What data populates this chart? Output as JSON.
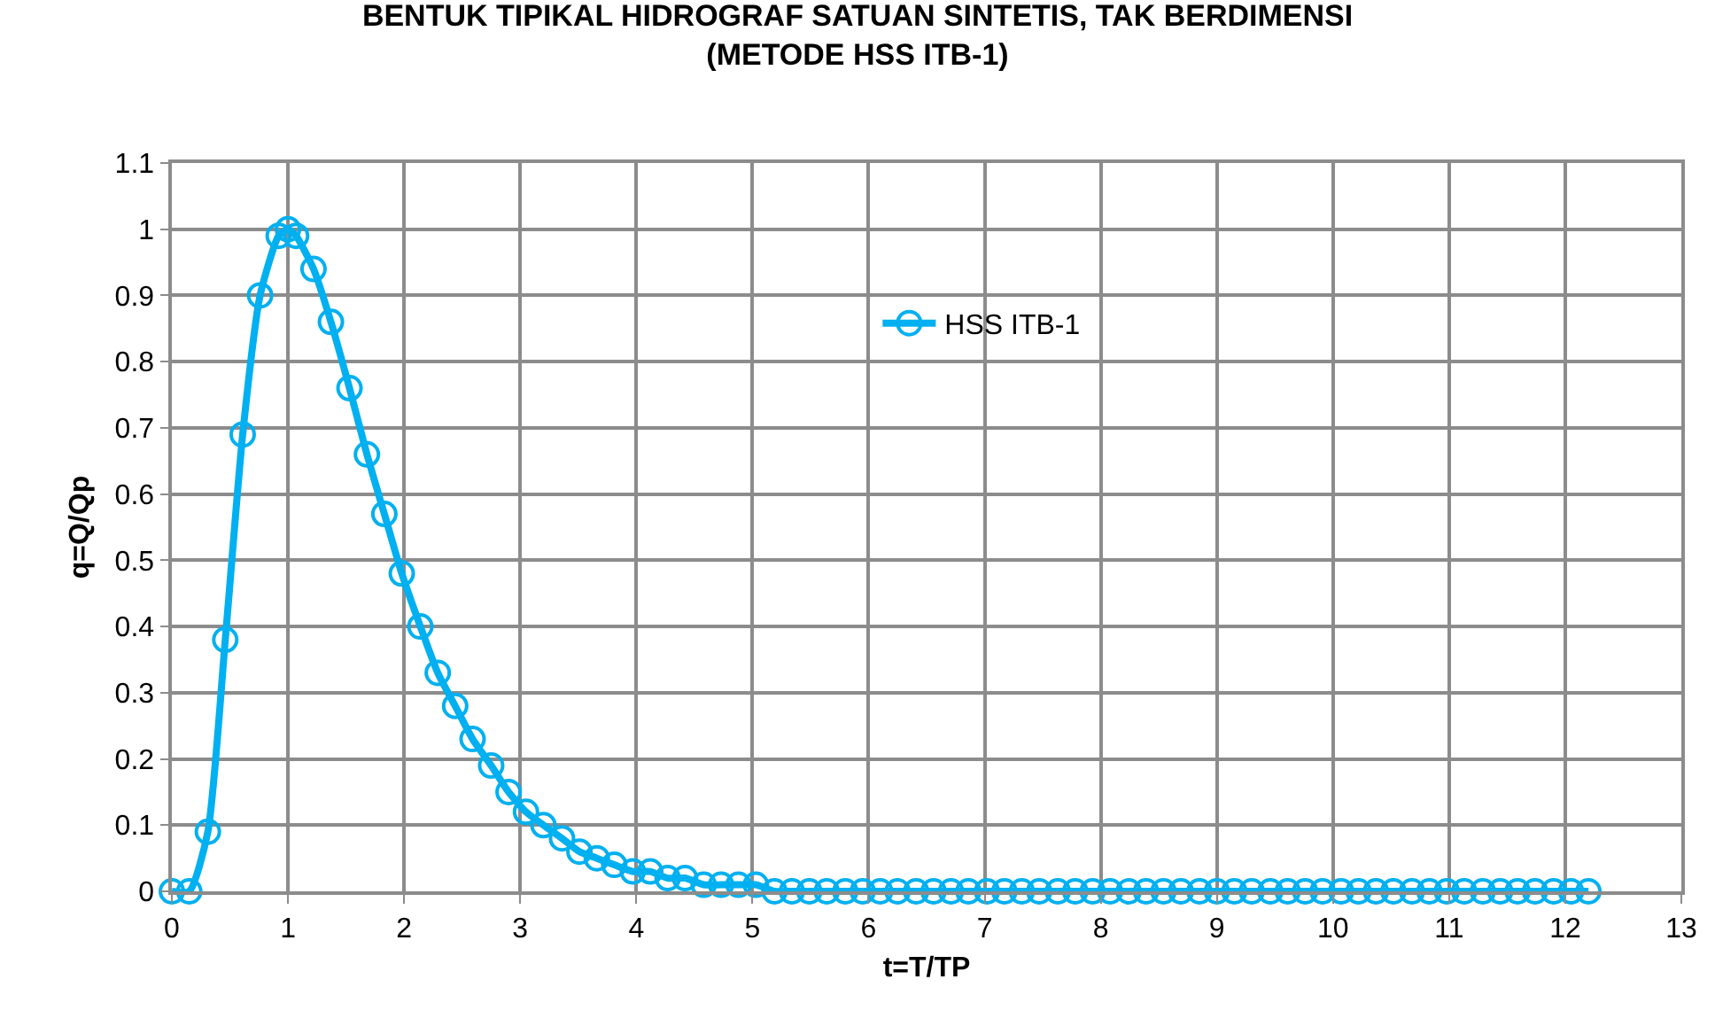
{
  "chart_data": {
    "type": "line",
    "title": "BENTUK TIPIKAL HIDROGRAF SATUAN SINTETIS, TAK BERDIMENSI\n(METODE HSS ITB-1)",
    "xlabel": "t=T/TP",
    "ylabel": "q=Q/Qp",
    "x": [
      0,
      0.15,
      0.31,
      0.46,
      0.61,
      0.76,
      0.92,
      1,
      1.07,
      1.22,
      1.37,
      1.53,
      1.68,
      1.83,
      1.98,
      2.14,
      2.29,
      2.44,
      2.59,
      2.75,
      2.9,
      3.05,
      3.2,
      3.36,
      3.51,
      3.66,
      3.81,
      3.97,
      4.12,
      4.27,
      4.42,
      4.58,
      4.73,
      4.88,
      5.03,
      5.19,
      5.34,
      5.49,
      5.64,
      5.8,
      5.95,
      6.1,
      6.25,
      6.41,
      6.56,
      6.71,
      6.86,
      7.02,
      7.17,
      7.32,
      7.47,
      7.63,
      7.78,
      7.93,
      8.08,
      8.24,
      8.39,
      8.54,
      8.69,
      8.85,
      9.0,
      9.15,
      9.3,
      9.46,
      9.61,
      9.76,
      9.91,
      10.07,
      10.22,
      10.37,
      10.52,
      10.68,
      10.83,
      10.98,
      11.13,
      11.29,
      11.44,
      11.59,
      11.74,
      11.9,
      12.05,
      12.2
    ],
    "series": [
      {
        "name": "HSS ITB-1",
        "color": "#00b0f0",
        "values": [
          0,
          0,
          0.09,
          0.38,
          0.69,
          0.9,
          0.99,
          1.0,
          0.99,
          0.94,
          0.86,
          0.76,
          0.66,
          0.57,
          0.48,
          0.4,
          0.33,
          0.28,
          0.23,
          0.19,
          0.15,
          0.12,
          0.1,
          0.08,
          0.06,
          0.05,
          0.04,
          0.03,
          0.03,
          0.02,
          0.02,
          0.01,
          0.01,
          0.01,
          0.01,
          0,
          0,
          0,
          0,
          0,
          0,
          0,
          0,
          0,
          0,
          0,
          0,
          0,
          0,
          0,
          0,
          0,
          0,
          0,
          0,
          0,
          0,
          0,
          0,
          0,
          0,
          0,
          0,
          0,
          0,
          0,
          0,
          0,
          0,
          0,
          0,
          0,
          0,
          0,
          0,
          0,
          0,
          0,
          0,
          0,
          0,
          0
        ]
      }
    ],
    "xlim": [
      0,
      13
    ],
    "xticks": [
      0,
      1,
      2,
      3,
      4,
      5,
      6,
      7,
      8,
      9,
      10,
      11,
      12,
      13
    ],
    "ylim": [
      0,
      1.1
    ],
    "yticks": [
      0,
      0.1,
      0.2,
      0.3,
      0.4,
      0.5,
      0.6,
      0.7,
      0.8,
      0.9,
      1,
      1.1
    ],
    "grid": true,
    "legend": "top",
    "marker": "circle",
    "line_style": "solid"
  }
}
